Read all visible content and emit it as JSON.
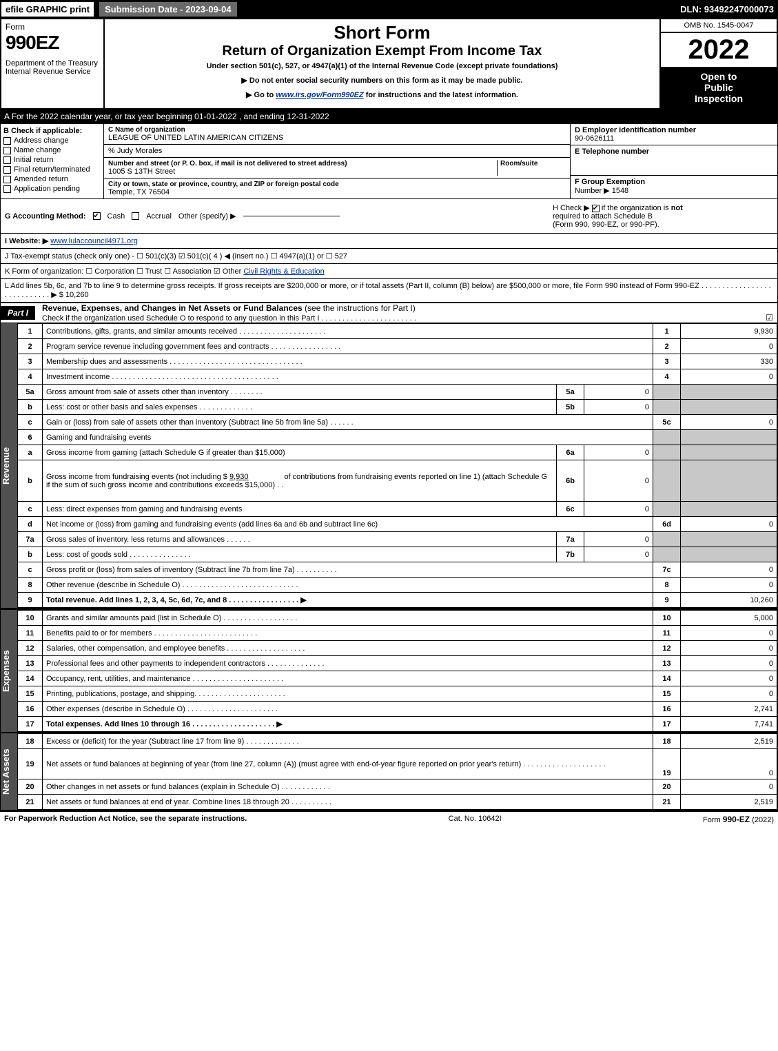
{
  "topbar": {
    "efile": "efile GRAPHIC print",
    "submission": "Submission Date - 2023-09-04",
    "dln": "DLN: 93492247000073"
  },
  "header": {
    "form_label": "Form",
    "form_number": "990EZ",
    "dept1": "Department of the Treasury",
    "dept2": "Internal Revenue Service",
    "short_form": "Short Form",
    "title": "Return of Organization Exempt From Income Tax",
    "subtitle": "Under section 501(c), 527, or 4947(a)(1) of the Internal Revenue Code (except private foundations)",
    "ssn_note": "▶ Do not enter social security numbers on this form as it may be made public.",
    "goto_pre": "▶ Go to ",
    "goto_link": "www.irs.gov/Form990EZ",
    "goto_post": " for instructions and the latest information.",
    "omb": "OMB No. 1545-0047",
    "year": "2022",
    "open1": "Open to",
    "open2": "Public",
    "open3": "Inspection"
  },
  "sectionA": "A  For the 2022 calendar year, or tax year beginning 01-01-2022  , and ending 12-31-2022",
  "sectionB": {
    "header": "B  Check if applicable:",
    "items": [
      {
        "label": "Address change",
        "checked": false
      },
      {
        "label": "Name change",
        "checked": false
      },
      {
        "label": "Initial return",
        "checked": false
      },
      {
        "label": "Final return/terminated",
        "checked": false
      },
      {
        "label": "Amended return",
        "checked": false
      },
      {
        "label": "Application pending",
        "checked": false
      }
    ]
  },
  "sectionC": {
    "name_lbl": "C Name of organization",
    "name": "LEAGUE OF UNITED LATIN AMERICAN CITIZENS",
    "pct_lbl": "% Judy Morales",
    "addr_lbl": "Number and street (or P. O. box, if mail is not delivered to street address)",
    "room_lbl": "Room/suite",
    "addr": "1005 S 13TH Street",
    "city_lbl": "City or town, state or province, country, and ZIP or foreign postal code",
    "city": "Temple, TX  76504"
  },
  "sectionD": {
    "lbl": "D Employer identification number",
    "val": "90-0626111"
  },
  "sectionE": {
    "lbl": "E Telephone number",
    "val": ""
  },
  "sectionF": {
    "lbl_a": "F Group Exemption",
    "lbl_b": "Number   ▶",
    "val": "1548"
  },
  "sectionG": {
    "label": "G Accounting Method:",
    "cash_checked": true,
    "cash": "Cash",
    "accrual": "Accrual",
    "other": "Other (specify) ▶"
  },
  "sectionH": {
    "text_a": "H  Check ▶",
    "text_b": "if the organization is ",
    "not": "not",
    "text_c": "required to attach Schedule B",
    "text_d": "(Form 990, 990-EZ, or 990-PF).",
    "checked": true
  },
  "sectionI": {
    "label": "I Website: ▶",
    "url": "www.lulaccouncil4971.org"
  },
  "sectionJ": "J Tax-exempt status (check only one) -  ☐ 501(c)(3)  ☑ 501(c)( 4 ) ◀ (insert no.)  ☐ 4947(a)(1) or  ☐ 527",
  "sectionK": {
    "prefix": "K Form of organization:  ☐ Corporation  ☐ Trust  ☐ Association  ☑ Other ",
    "link": "Civil Rights & Education"
  },
  "sectionL": {
    "text": "L Add lines 5b, 6c, and 7b to line 9 to determine gross receipts. If gross receipts are $200,000 or more, or if total assets (Part II, column (B) below) are $500,000 or more, file Form 990 instead of Form 990-EZ  .  .  .  .  .  .  .  .  .  .  .  .  .  .  .  .  .  .  .  .  .  .  .  .  .  .  .  . ▶",
    "amount": "$ 10,260"
  },
  "partI": {
    "tag": "Part I",
    "title": "Revenue, Expenses, and Changes in Net Assets or Fund Balances ",
    "title2": "(see the instructions for Part I)",
    "sub": "Check if the organization used Schedule O to respond to any question in this Part I .  .  .  .  .  .  .  .  .  .  .  .  .  .  .  .  .  .  .  .  .  .  .",
    "sub_check": "☑"
  },
  "groups": {
    "revenue_label": "Revenue",
    "expenses_label": "Expenses",
    "netassets_label": "Net Assets"
  },
  "revenue_lines": [
    {
      "ln": "1",
      "desc": "Contributions, gifts, grants, and similar amounts received  .  .  .  .  .  .  .  .  .  .  .  .  .  .  .  .  .  .  .  .  .",
      "no": "1",
      "amt": "9,930"
    },
    {
      "ln": "2",
      "desc": "Program service revenue including government fees and contracts  .  .  .  .  .  .  .  .  .  .  .  .  .  .  .  .  .",
      "no": "2",
      "amt": "0"
    },
    {
      "ln": "3",
      "desc": "Membership dues and assessments  .  .  .  .  .  .  .  .  .  .  .  .  .  .  .  .  .  .  .  .  .  .  .  .  .  .  .  .  .  .  .  .",
      "no": "3",
      "amt": "330"
    },
    {
      "ln": "4",
      "desc": "Investment income .  .  .  .  .  .  .  .  .  .  .  .  .  .  .  .  .  .  .  .  .  .  .  .  .  .  .  .  .  .  .  .  .  .  .  .  .  .  .  .",
      "no": "4",
      "amt": "0"
    }
  ],
  "line5": {
    "a": {
      "ln": "5a",
      "desc": "Gross amount from sale of assets other than inventory  .  .  .  .  .  .  .  .",
      "sub": "5a",
      "subval": "0"
    },
    "b": {
      "ln": "b",
      "desc": "Less: cost or other basis and sales expenses  .  .  .  .  .  .  .  .  .  .  .  .  .",
      "sub": "5b",
      "subval": "0"
    },
    "c": {
      "ln": "c",
      "desc": "Gain or (loss) from sale of assets other than inventory (Subtract line 5b from line 5a)  .  .  .  .  .  .",
      "no": "5c",
      "amt": "0"
    }
  },
  "line6": {
    "hdr": {
      "ln": "6",
      "desc": "Gaming and fundraising events"
    },
    "a": {
      "ln": "a",
      "desc": "Gross income from gaming (attach Schedule G if greater than $15,000)",
      "sub": "6a",
      "subval": "0"
    },
    "b_desc1": "Gross income from fundraising events (not including $ ",
    "b_underline": "9,930",
    "b_desc2": "of contributions from fundraising events reported on line 1) (attach Schedule G if the sum of such gross income and contributions exceeds $15,000)      .   .",
    "b": {
      "ln": "b",
      "sub": "6b",
      "subval": "0"
    },
    "c": {
      "ln": "c",
      "desc": "Less: direct expenses from gaming and fundraising events",
      "sub": "6c",
      "subval": "0"
    },
    "d": {
      "ln": "d",
      "desc": "Net income or (loss) from gaming and fundraising events (add lines 6a and 6b and subtract line 6c)",
      "no": "6d",
      "amt": "0"
    }
  },
  "line7": {
    "a": {
      "ln": "7a",
      "desc": "Gross sales of inventory, less returns and allowances  .  .  .  .  .  .",
      "sub": "7a",
      "subval": "0"
    },
    "b": {
      "ln": "b",
      "desc": "Less: cost of goods sold       .   .   .   .   .   .   .   .   .   .   .   .   .   .   .",
      "sub": "7b",
      "subval": "0"
    },
    "c": {
      "ln": "c",
      "desc": "Gross profit or (loss) from sales of inventory (Subtract line 7b from line 7a)  .  .  .  .  .  .  .  .  .  .",
      "no": "7c",
      "amt": "0"
    }
  },
  "line8": {
    "ln": "8",
    "desc": "Other revenue (describe in Schedule O)  .  .  .  .  .  .  .  .  .  .  .  .  .  .  .  .  .  .  .  .  .  .  .  .  .  .  .  .",
    "no": "8",
    "amt": "0"
  },
  "line9": {
    "ln": "9",
    "desc": "Total revenue. Add lines 1, 2, 3, 4, 5c, 6d, 7c, and 8   .   .   .   .   .   .   .   .   .   .   .   .   .   .   .   .   . ▶",
    "no": "9",
    "amt": "10,260",
    "bold": true
  },
  "expenses_lines": [
    {
      "ln": "10",
      "desc": "Grants and similar amounts paid (list in Schedule O)  .   .   .   .   .   .   .   .   .   .   .   .   .   .   .   .   .   .",
      "no": "10",
      "amt": "5,000"
    },
    {
      "ln": "11",
      "desc": "Benefits paid to or for members      .   .   .   .   .   .   .   .   .   .   .   .   .   .   .   .   .   .   .   .   .   .   .   .   .",
      "no": "11",
      "amt": "0"
    },
    {
      "ln": "12",
      "desc": "Salaries, other compensation, and employee benefits .   .   .   .   .   .   .   .   .   .   .   .   .   .   .   .   .   .   .",
      "no": "12",
      "amt": "0"
    },
    {
      "ln": "13",
      "desc": "Professional fees and other payments to independent contractors .   .   .   .   .   .   .   .   .   .   .   .   .   .",
      "no": "13",
      "amt": "0"
    },
    {
      "ln": "14",
      "desc": "Occupancy, rent, utilities, and maintenance .   .   .   .   .   .   .   .   .   .   .   .   .   .   .   .   .   .   .   .   .   .",
      "no": "14",
      "amt": "0"
    },
    {
      "ln": "15",
      "desc": "Printing, publications, postage, and shipping.   .   .   .   .   .   .   .   .   .   .   .   .   .   .   .   .   .   .   .   .   .",
      "no": "15",
      "amt": "0"
    },
    {
      "ln": "16",
      "desc": "Other expenses (describe in Schedule O)     .   .   .   .   .   .   .   .   .   .   .   .   .   .   .   .   .   .   .   .   .   .",
      "no": "16",
      "amt": "2,741"
    },
    {
      "ln": "17",
      "desc": "Total expenses. Add lines 10 through 16     .   .   .   .   .   .   .   .   .   .   .   .   .   .   .   .   .   .   .   . ▶",
      "no": "17",
      "amt": "7,741",
      "bold": true
    }
  ],
  "netassets_lines": [
    {
      "ln": "18",
      "desc": "Excess or (deficit) for the year (Subtract line 17 from line 9)       .   .   .   .   .   .   .   .   .   .   .   .   .",
      "no": "18",
      "amt": "2,519"
    },
    {
      "ln": "19",
      "desc": "Net assets or fund balances at beginning of year (from line 27, column (A)) (must agree with end-of-year figure reported on prior year's return) .   .   .   .   .   .   .   .   .   .   .   .   .   .   .   .   .   .   .   .",
      "no": "19",
      "amt": "0",
      "tall": true
    },
    {
      "ln": "20",
      "desc": "Other changes in net assets or fund balances (explain in Schedule O) .   .   .   .   .   .   .   .   .   .   .   .",
      "no": "20",
      "amt": "0"
    },
    {
      "ln": "21",
      "desc": "Net assets or fund balances at end of year. Combine lines 18 through 20 .   .   .   .   .   .   .   .   .   .",
      "no": "21",
      "amt": "2,519"
    }
  ],
  "footer": {
    "left": "For Paperwork Reduction Act Notice, see the separate instructions.",
    "mid": "Cat. No. 10642I",
    "right_a": "Form ",
    "right_b": "990-EZ",
    "right_c": " (2022)"
  }
}
